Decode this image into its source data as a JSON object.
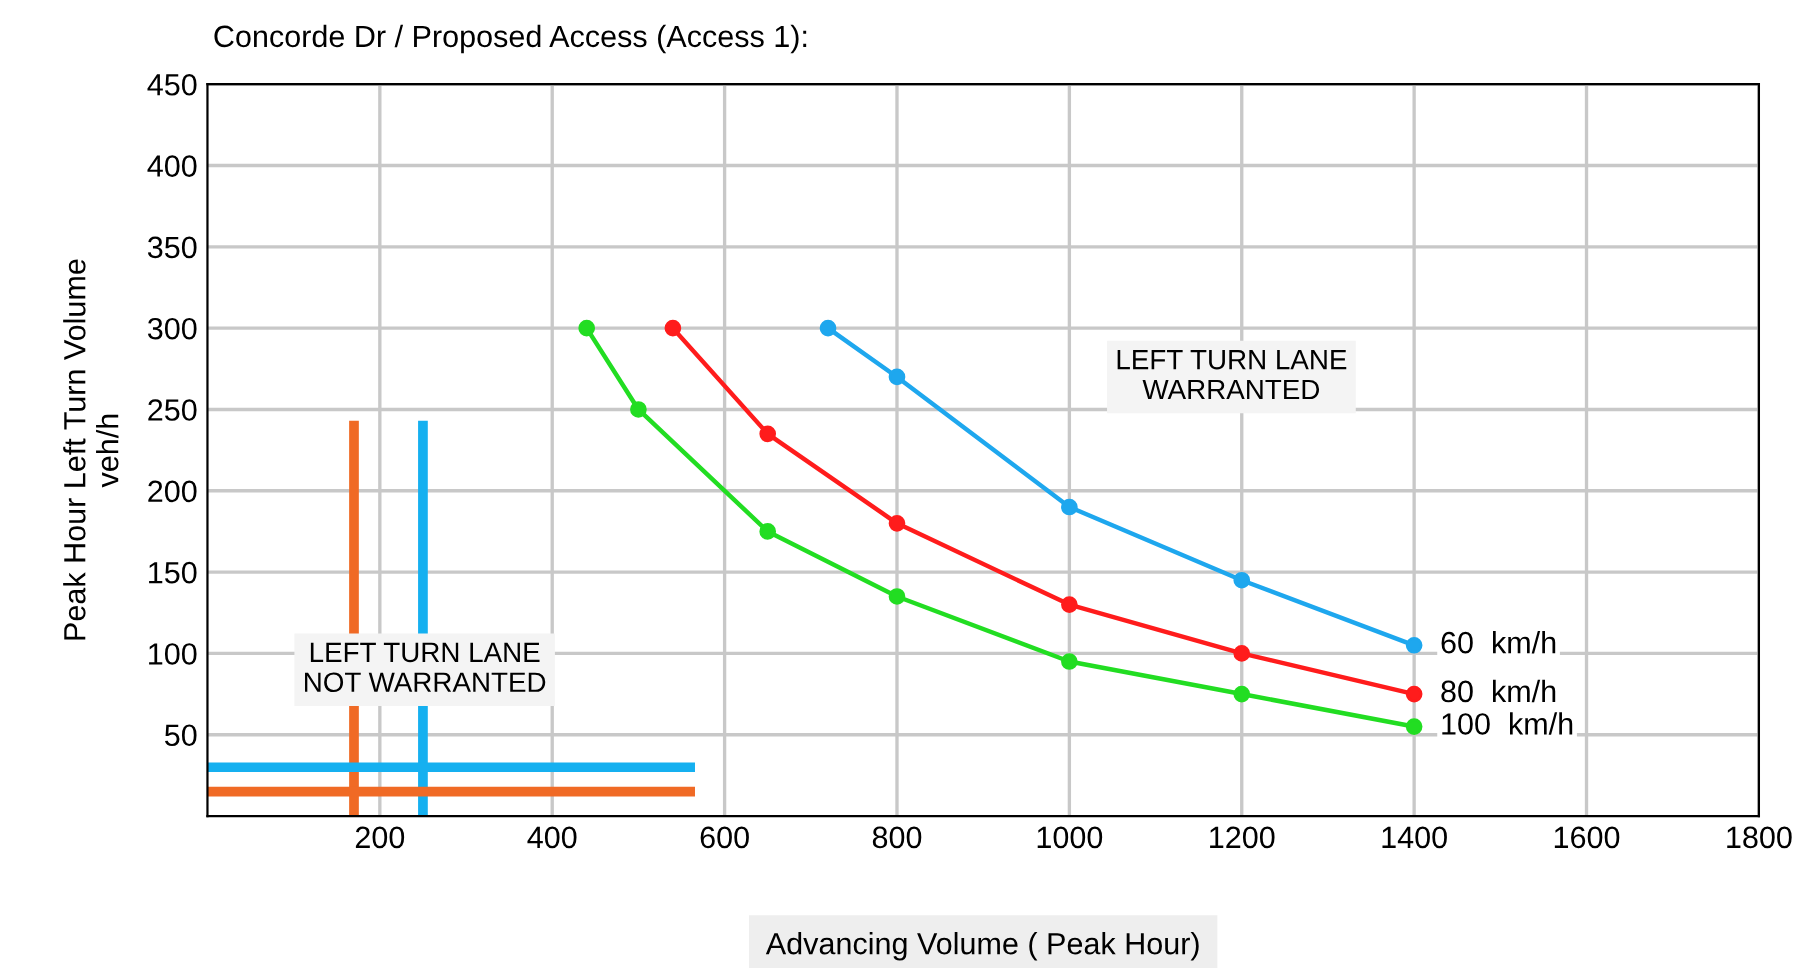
{
  "chart_data": {
    "type": "line",
    "title": "Concorde Dr / Proposed Access (Access 1):",
    "xlabel": "Advancing Volume ( Peak Hour)",
    "ylabel": "Peak Hour Left Turn Volume\nveh/h",
    "xlim": [
      0,
      1800
    ],
    "xticks": [
      200,
      400,
      600,
      800,
      1000,
      1200,
      1400,
      1600,
      1800
    ],
    "ylim": [
      0,
      450
    ],
    "yticks": [
      50,
      100,
      150,
      200,
      250,
      300,
      350,
      400,
      450
    ],
    "grid": true,
    "legend": false,
    "marker": "circle",
    "line_style": "solid",
    "annotations": [
      "LEFT TURN LANE\nWARRANTED",
      "LEFT TURN LANE\nNOT WARRANTED"
    ],
    "series": [
      {
        "name": "60  km/h",
        "color": "#1ea7ee",
        "x": [
          720,
          800,
          1000,
          1200,
          1400
        ],
        "values": [
          300,
          270,
          190,
          145,
          105
        ]
      },
      {
        "name": "80  km/h",
        "color": "#ff1c1c",
        "x": [
          540,
          650,
          800,
          1000,
          1200,
          1400
        ],
        "values": [
          300,
          235,
          180,
          130,
          100,
          75
        ]
      },
      {
        "name": "100  km/h",
        "color": "#22dd22",
        "x": [
          440,
          500,
          650,
          800,
          1000,
          1200,
          1400
        ],
        "values": [
          300,
          250,
          175,
          135,
          95,
          75,
          55
        ]
      },
      {
        "color": "#f06a25",
        "x": [
          170,
          170
        ],
        "values": [
          0,
          240
        ],
        "marker": "none"
      },
      {
        "color": "#15b0f0",
        "x": [
          250,
          250
        ],
        "values": [
          0,
          240
        ],
        "marker": "none"
      },
      {
        "color": "#15b0f0",
        "x": [
          0,
          560
        ],
        "values": [
          30,
          30
        ],
        "marker": "none"
      },
      {
        "color": "#f06a25",
        "x": [
          0,
          560
        ],
        "values": [
          15,
          15
        ],
        "marker": "none"
      }
    ]
  }
}
